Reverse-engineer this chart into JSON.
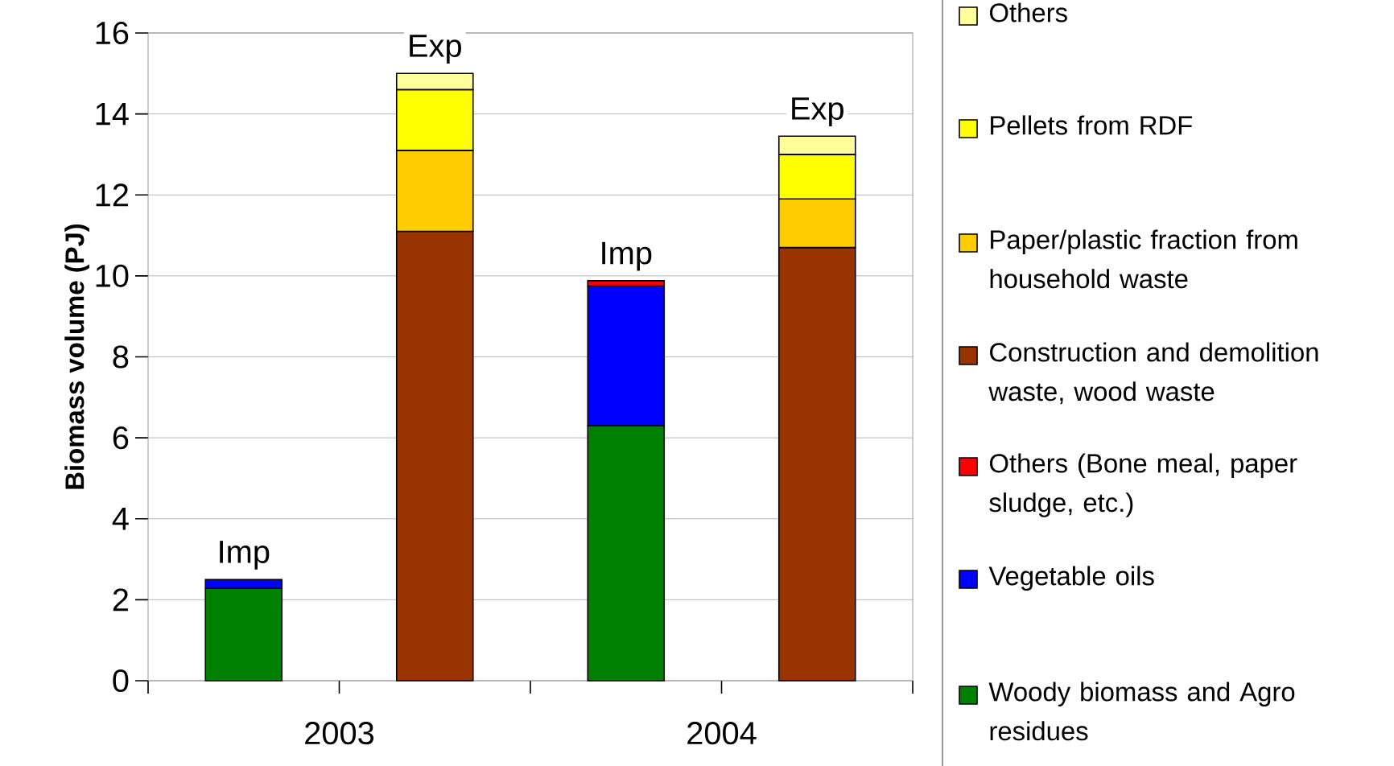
{
  "chart_data": {
    "type": "bar",
    "stacked": true,
    "ylabel": "Biomass volume (PJ)",
    "categories": [
      null,
      null,
      null,
      null
    ],
    "annotations": [
      {
        "text": "Imp",
        "y": 2.5
      },
      {
        "text": "Exp",
        "y": 15.0
      },
      {
        "text": "Imp",
        "y": 9.88
      },
      {
        "text": "Exp",
        "y": 13.45
      },
      "2003",
      "2004"
    ],
    "series": [
      {
        "name": "Woody biomass and Agro residues",
        "color": "#008000",
        "values": [
          2.28,
          null,
          6.3,
          null
        ]
      },
      {
        "name": "Vegetable oils",
        "color": "#0000ff",
        "values": [
          0.22,
          null,
          3.45,
          null
        ]
      },
      {
        "name": "Others (Bone meal, paper sludge, etc.)",
        "color": "#ff0000",
        "values": [
          null,
          null,
          0.13,
          null
        ]
      },
      {
        "name": "Construction and demolition waste, wood waste",
        "color": "#993300",
        "values": [
          null,
          11.1,
          null,
          10.7
        ]
      },
      {
        "name": "Paper/plastic fraction from household waste",
        "color": "#ffcc00",
        "values": [
          null,
          2.0,
          null,
          1.2
        ]
      },
      {
        "name": "Pellets from RDF",
        "color": "#ffff00",
        "values": [
          null,
          1.5,
          null,
          1.1
        ]
      },
      {
        "name": "Others",
        "color": "#ffff99",
        "values": [
          null,
          0.4,
          null,
          0.45
        ]
      }
    ],
    "ylim": [
      0,
      16
    ],
    "yticks": [
      0,
      2,
      4,
      6,
      8,
      10,
      12,
      14,
      16
    ],
    "grid": "y",
    "legend": "right"
  }
}
